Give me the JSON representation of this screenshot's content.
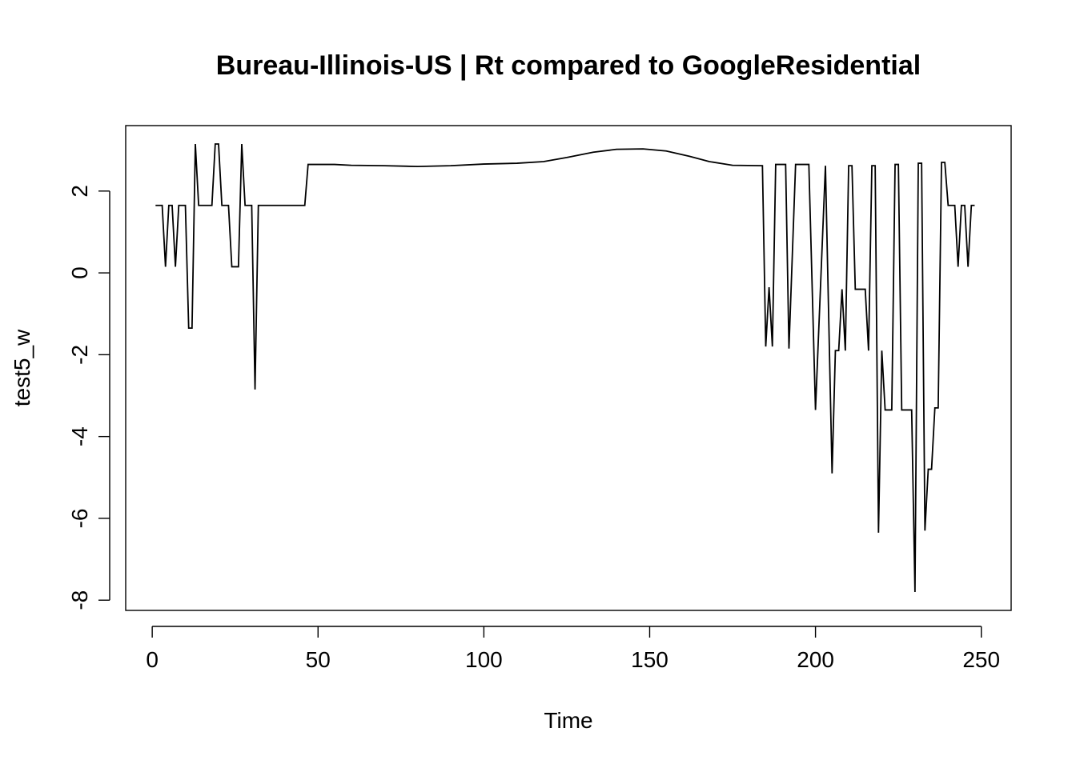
{
  "chart_data": {
    "type": "line",
    "title": "Bureau-Illinois-US | Rt compared to GoogleResidential",
    "xlabel": "Time",
    "ylabel": "test5_w",
    "xlim": [
      -8,
      259
    ],
    "ylim": [
      -8.25,
      3.6
    ],
    "x_ticks": [
      0,
      50,
      100,
      150,
      200,
      250
    ],
    "y_ticks": [
      -8,
      -6,
      -4,
      -2,
      0,
      2
    ],
    "grid": false,
    "legend": "none",
    "series": [
      {
        "color": "#000000",
        "points": [
          [
            1,
            1.65
          ],
          [
            3,
            1.65
          ],
          [
            4,
            0.15
          ],
          [
            5,
            1.65
          ],
          [
            6,
            1.65
          ],
          [
            7,
            0.15
          ],
          [
            8,
            1.65
          ],
          [
            10,
            1.65
          ],
          [
            11,
            -1.35
          ],
          [
            12,
            -1.35
          ],
          [
            13,
            3.15
          ],
          [
            14,
            1.65
          ],
          [
            18,
            1.65
          ],
          [
            19,
            3.15
          ],
          [
            20,
            3.15
          ],
          [
            21,
            1.65
          ],
          [
            23,
            1.65
          ],
          [
            24,
            0.15
          ],
          [
            26,
            0.15
          ],
          [
            27,
            3.15
          ],
          [
            28,
            1.65
          ],
          [
            30,
            1.65
          ],
          [
            31,
            -2.85
          ],
          [
            32,
            1.65
          ],
          [
            46,
            1.65
          ],
          [
            47,
            2.65
          ],
          [
            55,
            2.65
          ],
          [
            60,
            2.63
          ],
          [
            70,
            2.62
          ],
          [
            80,
            2.6
          ],
          [
            90,
            2.62
          ],
          [
            100,
            2.66
          ],
          [
            110,
            2.68
          ],
          [
            118,
            2.72
          ],
          [
            125,
            2.82
          ],
          [
            133,
            2.95
          ],
          [
            140,
            3.02
          ],
          [
            148,
            3.03
          ],
          [
            155,
            2.98
          ],
          [
            162,
            2.85
          ],
          [
            168,
            2.72
          ],
          [
            175,
            2.63
          ],
          [
            184,
            2.62
          ],
          [
            185,
            -1.8
          ],
          [
            186,
            -0.35
          ],
          [
            187,
            -1.8
          ],
          [
            188,
            2.65
          ],
          [
            191,
            2.65
          ],
          [
            192,
            -1.85
          ],
          [
            194,
            2.65
          ],
          [
            198,
            2.65
          ],
          [
            200,
            -3.35
          ],
          [
            203,
            2.62
          ],
          [
            205,
            -4.9
          ],
          [
            206,
            -1.9
          ],
          [
            207,
            -1.9
          ],
          [
            208,
            -0.4
          ],
          [
            209,
            -1.9
          ],
          [
            210,
            2.62
          ],
          [
            211,
            2.62
          ],
          [
            212,
            -0.4
          ],
          [
            215,
            -0.4
          ],
          [
            216,
            -1.9
          ],
          [
            217,
            2.62
          ],
          [
            218,
            2.62
          ],
          [
            219,
            -6.35
          ],
          [
            220,
            -1.9
          ],
          [
            221,
            -3.35
          ],
          [
            223,
            -3.35
          ],
          [
            224,
            2.65
          ],
          [
            225,
            2.65
          ],
          [
            226,
            -3.35
          ],
          [
            229,
            -3.35
          ],
          [
            230,
            -7.8
          ],
          [
            231,
            2.68
          ],
          [
            232,
            2.68
          ],
          [
            233,
            -6.3
          ],
          [
            234,
            -4.8
          ],
          [
            235,
            -4.8
          ],
          [
            236,
            -3.3
          ],
          [
            237,
            -3.3
          ],
          [
            238,
            2.7
          ],
          [
            239,
            2.7
          ],
          [
            240,
            1.65
          ],
          [
            242,
            1.65
          ],
          [
            243,
            0.15
          ],
          [
            244,
            1.65
          ],
          [
            245,
            1.65
          ],
          [
            246,
            0.15
          ],
          [
            247,
            1.65
          ],
          [
            248,
            1.65
          ]
        ]
      }
    ]
  }
}
